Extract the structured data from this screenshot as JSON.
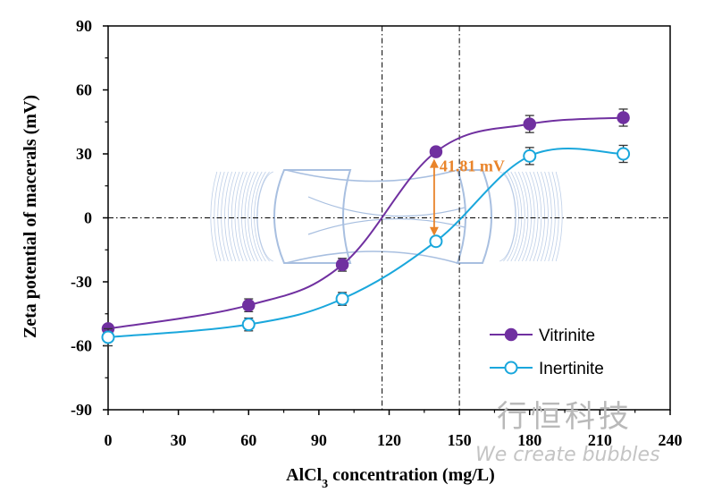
{
  "chart_data": {
    "type": "line",
    "xlabel_main": "AlCl",
    "xlabel_sub": "3",
    "xlabel_rest": " concentration (mg/L)",
    "ylabel": "Zeta potential of macerals  (mV)",
    "xlim": [
      0,
      240
    ],
    "ylim": [
      -90,
      90
    ],
    "xticks": [
      0,
      30,
      60,
      90,
      120,
      150,
      180,
      210,
      240
    ],
    "yticks": [
      90,
      60,
      30,
      0,
      -30,
      -60,
      -90
    ],
    "xtick_labels": [
      "0",
      "30",
      "60",
      "90",
      "120",
      "150",
      "180",
      "210",
      "240"
    ],
    "ytick_labels": [
      "90",
      "60",
      "30",
      "0",
      "-30",
      "-60",
      "-90"
    ],
    "series": [
      {
        "name": "Vitrinite",
        "color": "#7030a0",
        "marker": "filled-circle",
        "x": [
          0,
          60,
          100,
          140,
          180,
          220
        ],
        "y": [
          -52,
          -41,
          -22,
          31,
          44,
          47
        ],
        "err": [
          2,
          3,
          3,
          2,
          4,
          4
        ]
      },
      {
        "name": "Inertinite",
        "color": "#1aa7dc",
        "marker": "open-circle",
        "x": [
          0,
          60,
          100,
          140,
          180,
          220
        ],
        "y": [
          -56,
          -50,
          -38,
          -11,
          29,
          30
        ],
        "err": [
          4,
          3,
          3,
          2,
          4,
          4
        ]
      }
    ],
    "reference_lines": {
      "vertical_x": [
        117,
        150
      ],
      "horizontal_y": [
        0
      ]
    },
    "annotation": {
      "text": "41.81 mV",
      "color": "#e9842a",
      "x": 140,
      "y_from": 31,
      "y_to": -11
    },
    "legend": {
      "position": "bottom-right",
      "items": [
        "Vitrinite",
        "Inertinite"
      ]
    }
  },
  "watermark": {
    "chinese": "行恒科技",
    "english": "We create bubbles"
  },
  "colors": {
    "vitrinite": "#7030a0",
    "inertinite": "#1aa7dc",
    "annotation": "#e9842a",
    "field_lines": "#a8bfe0"
  }
}
